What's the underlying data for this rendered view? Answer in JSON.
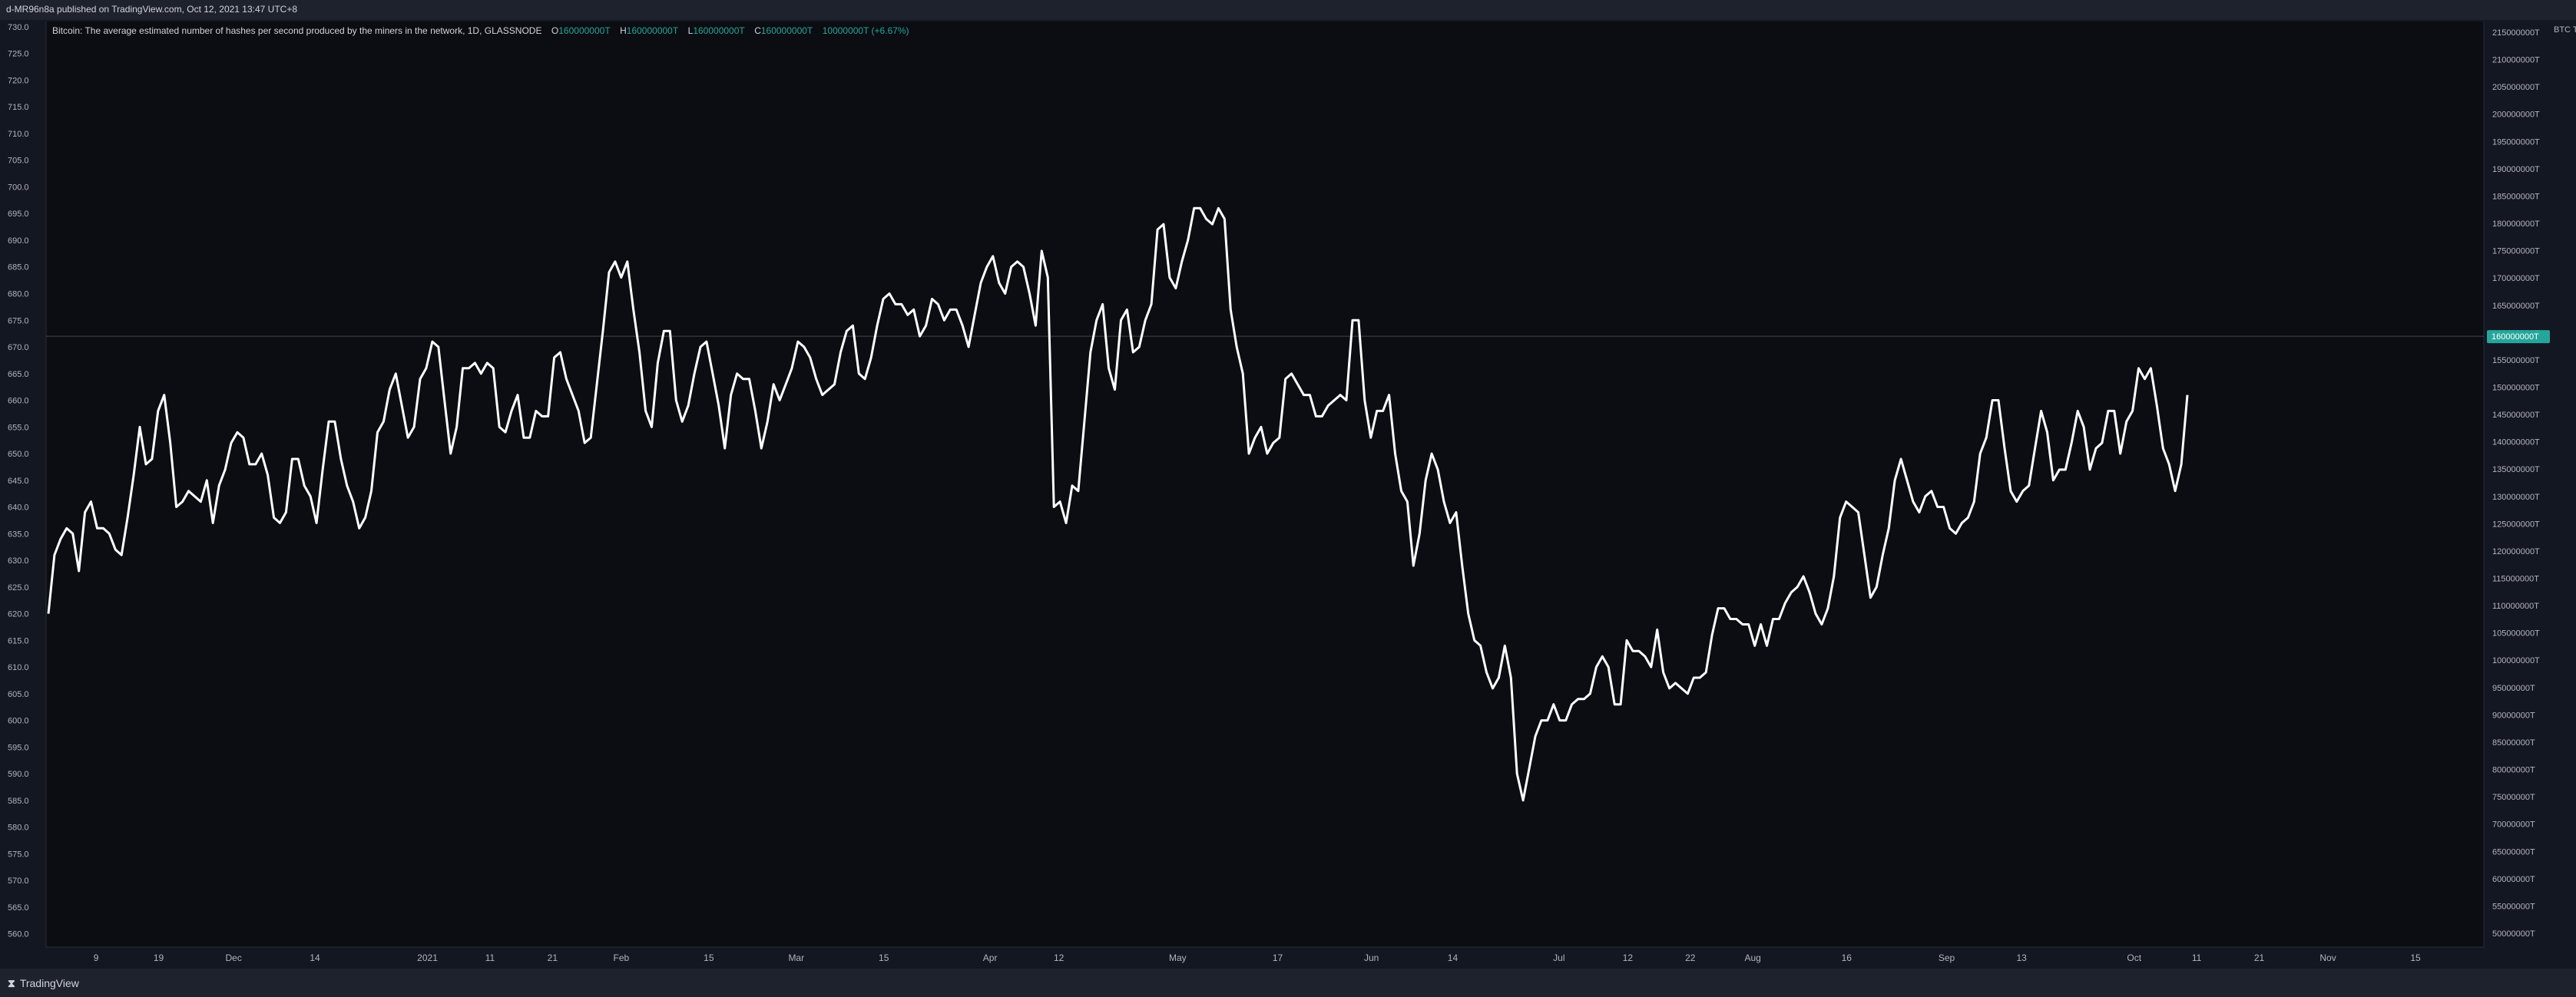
{
  "header": {
    "published": "d-MR96n8a published on TradingView.com, Oct 12, 2021 13:47 UTC+8"
  },
  "footer": {
    "brand_logo": "⧗",
    "brand": "TradingView"
  },
  "colors": {
    "line": "#ffffff",
    "background": "#131722",
    "bar": "#1e222d",
    "up": "#26a69a",
    "down": "#ef5350",
    "badge": "#26a69a"
  },
  "chart_data": {
    "type": "line",
    "legend": {
      "title": "Bitcoin: The average estimated number of hashes per second produced by the miners in the network, 1D, GLASSNODE",
      "o_key": "O",
      "o_val": "160000000T",
      "h_key": "H",
      "h_val": "160000000T",
      "l_key": "L",
      "l_val": "160000000T",
      "c_key": "C",
      "c_val": "160000000T",
      "change": "10000000T (+6.67%)"
    },
    "left_axis": {
      "range": [
        557.5,
        731.0
      ],
      "ticks": [
        "730.0",
        "725.0",
        "720.0",
        "715.0",
        "710.0",
        "705.0",
        "700.0",
        "695.0",
        "690.0",
        "685.0",
        "680.0",
        "675.0",
        "670.0",
        "665.0",
        "660.0",
        "655.0",
        "650.0",
        "645.0",
        "640.0",
        "635.0",
        "630.0",
        "625.0",
        "620.0",
        "615.0",
        "610.0",
        "605.0",
        "600.0",
        "595.0",
        "590.0",
        "585.0",
        "580.0",
        "575.0",
        "570.0",
        "565.0",
        "560.0"
      ]
    },
    "right_axis": {
      "unit_label": "BTC T",
      "ticks": [
        "215000000T",
        "210000000T",
        "205000000T",
        "200000000T",
        "195000000T",
        "190000000T",
        "185000000T",
        "180000000T",
        "175000000T",
        "170000000T",
        "165000000T",
        "160000000T",
        "155000000T",
        "150000000T",
        "145000000T",
        "140000000T",
        "135000000T",
        "130000000T",
        "125000000T",
        "120000000T",
        "115000000T",
        "110000000T",
        "105000000T",
        "100000000T",
        "95000000T",
        "90000000T",
        "85000000T",
        "80000000T",
        "75000000T",
        "70000000T",
        "65000000T",
        "60000000T",
        "55000000T",
        "50000000T"
      ],
      "current_label": "160000000T",
      "current_level": 672.0
    },
    "x_axis": {
      "range_days": [
        0,
        378
      ],
      "ticks": [
        {
          "label": "9",
          "day": 8
        },
        {
          "label": "19",
          "day": 18
        },
        {
          "label": "Dec",
          "day": 30
        },
        {
          "label": "14",
          "day": 43
        },
        {
          "label": "2021",
          "day": 61
        },
        {
          "label": "11",
          "day": 71
        },
        {
          "label": "21",
          "day": 81
        },
        {
          "label": "Feb",
          "day": 92
        },
        {
          "label": "15",
          "day": 106
        },
        {
          "label": "Mar",
          "day": 120
        },
        {
          "label": "15",
          "day": 134
        },
        {
          "label": "Apr",
          "day": 151
        },
        {
          "label": "12",
          "day": 162
        },
        {
          "label": "May",
          "day": 181
        },
        {
          "label": "17",
          "day": 197
        },
        {
          "label": "Jun",
          "day": 212
        },
        {
          "label": "14",
          "day": 225
        },
        {
          "label": "Jul",
          "day": 242
        },
        {
          "label": "12",
          "day": 253
        },
        {
          "label": "22",
          "day": 263
        },
        {
          "label": "Aug",
          "day": 273
        },
        {
          "label": "16",
          "day": 288
        },
        {
          "label": "Sep",
          "day": 304
        },
        {
          "label": "13",
          "day": 316
        },
        {
          "label": "Oct",
          "day": 334
        },
        {
          "label": "11",
          "day": 344
        },
        {
          "label": "21",
          "day": 354
        },
        {
          "label": "Nov",
          "day": 365
        },
        {
          "label": "15",
          "day": 379
        }
      ]
    },
    "series": [
      {
        "values": [
          620,
          631,
          634,
          636,
          635,
          628,
          639,
          641,
          636,
          636,
          635,
          632,
          631,
          638,
          646,
          655,
          648,
          649,
          658,
          661,
          652,
          640,
          641,
          643,
          642,
          641,
          645,
          637,
          644,
          647,
          652,
          654,
          653,
          648,
          648,
          650,
          646,
          638,
          637,
          639,
          649,
          649,
          644,
          642,
          637,
          647,
          656,
          656,
          649,
          644,
          641,
          636,
          638,
          643,
          654,
          656,
          662,
          665,
          659,
          653,
          655,
          664,
          666,
          671,
          670,
          660,
          650,
          655,
          666,
          666,
          667,
          665,
          667,
          666,
          655,
          654,
          658,
          661,
          653,
          653,
          658,
          657,
          657,
          668,
          669,
          664,
          661,
          658,
          652,
          653,
          663,
          673,
          684,
          686,
          683,
          686,
          677,
          669,
          658,
          655,
          667,
          673,
          673,
          660,
          656,
          659,
          665,
          670,
          671,
          665,
          659,
          651,
          661,
          665,
          664,
          664,
          658,
          651,
          656,
          663,
          660,
          663,
          666,
          671,
          670,
          668,
          664,
          661,
          662,
          663,
          669,
          673,
          674,
          665,
          664,
          668,
          674,
          679,
          680,
          678,
          678,
          676,
          677,
          672,
          674,
          679,
          678,
          675,
          677,
          677,
          674,
          670,
          676,
          682,
          685,
          687,
          682,
          680,
          685,
          686,
          685,
          680,
          674,
          688,
          683,
          640,
          641,
          637,
          644,
          643,
          656,
          669,
          675,
          678,
          666,
          662,
          675,
          677,
          669,
          670,
          675,
          678,
          692,
          693,
          683,
          681,
          686,
          690,
          696,
          696,
          694,
          693,
          696,
          694,
          677,
          670,
          665,
          650,
          653,
          655,
          650,
          652,
          653,
          664,
          665,
          663,
          661,
          661,
          657,
          657,
          659,
          660,
          661,
          660,
          675,
          675,
          660,
          653,
          658,
          658,
          661,
          650,
          643,
          641,
          629,
          635,
          645,
          650,
          647,
          641,
          637,
          639,
          629,
          620,
          615,
          614,
          609,
          606,
          608,
          614,
          608,
          590,
          585,
          591,
          597,
          600,
          600,
          603,
          600,
          600,
          603,
          604,
          604,
          605,
          610,
          612,
          610,
          603,
          603,
          615,
          613,
          613,
          612,
          610,
          617,
          609,
          606,
          607,
          606,
          605,
          608,
          608,
          609,
          616,
          621,
          621,
          619,
          619,
          618,
          618,
          614,
          618,
          614,
          619,
          619,
          622,
          624,
          625,
          627,
          624,
          620,
          618,
          621,
          627,
          638,
          641,
          640,
          639,
          631,
          623,
          625,
          631,
          636,
          645,
          649,
          645,
          641,
          639,
          642,
          643,
          640,
          640,
          636,
          635,
          637,
          638,
          641,
          650,
          653,
          660,
          660,
          651,
          643,
          641,
          643,
          644,
          651,
          658,
          654,
          645,
          647,
          647,
          652,
          658,
          655,
          647,
          651,
          652,
          658,
          658,
          650,
          656,
          658,
          666,
          664,
          666,
          659,
          651,
          648,
          643,
          648,
          661
        ]
      }
    ],
    "grid": false
  }
}
